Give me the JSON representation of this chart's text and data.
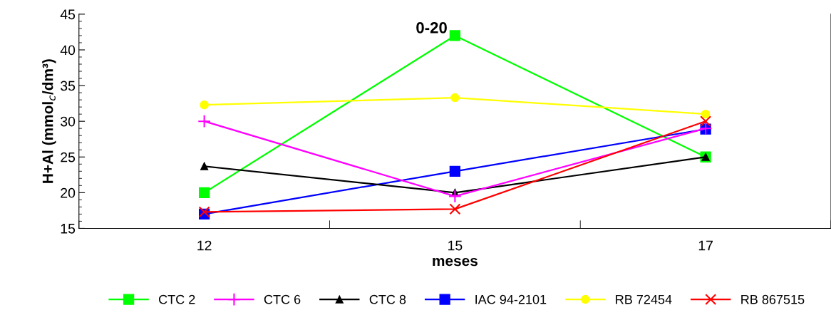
{
  "chart_data": {
    "type": "line",
    "xlabel": "meses",
    "ylabel": "H+Al (mmol$_{c}$/dm³)",
    "categories": [
      "12",
      "15",
      "17"
    ],
    "ylim": [
      15,
      45
    ],
    "yticks": [
      15,
      20,
      25,
      30,
      35,
      40,
      45
    ],
    "grid": false,
    "legend": "bottom",
    "annotations": [
      "0-20"
    ],
    "series": [
      {
        "name": "CTC 2",
        "color": "#00ff00",
        "marker": "square",
        "values": [
          20,
          42,
          25
        ]
      },
      {
        "name": "CTC 6",
        "color": "#ff00ff",
        "marker": "plus",
        "values": [
          30,
          19.5,
          29
        ]
      },
      {
        "name": "CTC 8",
        "color": "#000000",
        "marker": "triangle",
        "values": [
          23.7,
          20,
          25
        ]
      },
      {
        "name": "IAC 94-2101",
        "color": "#0000ff",
        "marker": "square",
        "values": [
          17,
          23,
          28.9
        ]
      },
      {
        "name": "RB 72454",
        "color": "#ffff00",
        "marker": "circle",
        "values": [
          32.3,
          33.3,
          31
        ]
      },
      {
        "name": "RB 867515",
        "color": "#ff0000",
        "marker": "cross",
        "values": [
          17.3,
          17.7,
          30
        ]
      }
    ]
  }
}
